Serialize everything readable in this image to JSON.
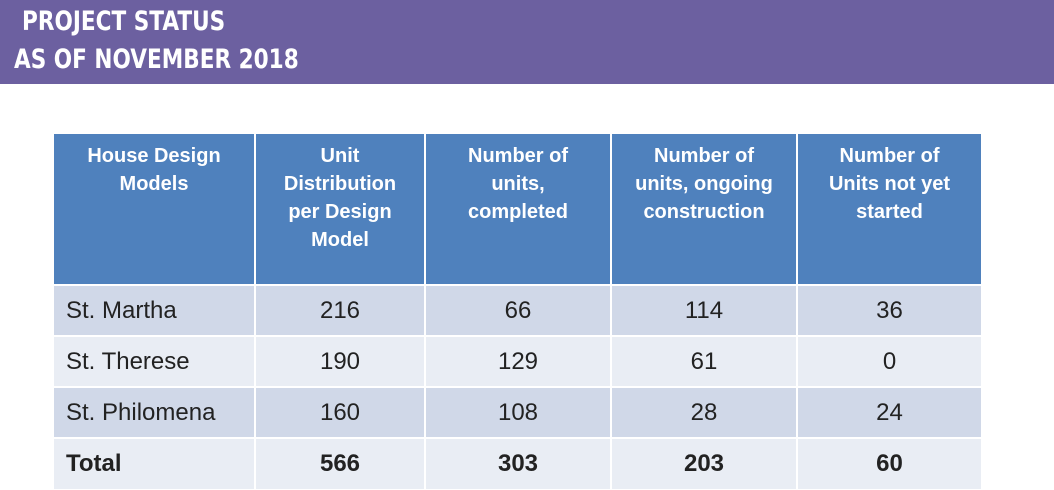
{
  "header": {
    "title": "PROJECT STATUS",
    "subtitle": "AS OF NOVEMBER 2018"
  },
  "table": {
    "columns": [
      "House Design Models",
      "Unit Distribution per Design Model",
      "Number of units, completed",
      "Number of units, ongoing construction",
      "Number of Units not yet started"
    ],
    "rows": [
      [
        "St. Martha",
        216,
        66,
        114,
        36
      ],
      [
        "St. Therese",
        190,
        129,
        61,
        0
      ],
      [
        "St. Philomena",
        160,
        108,
        28,
        24
      ]
    ],
    "total": [
      "Total",
      566,
      303,
      203,
      60
    ]
  }
}
